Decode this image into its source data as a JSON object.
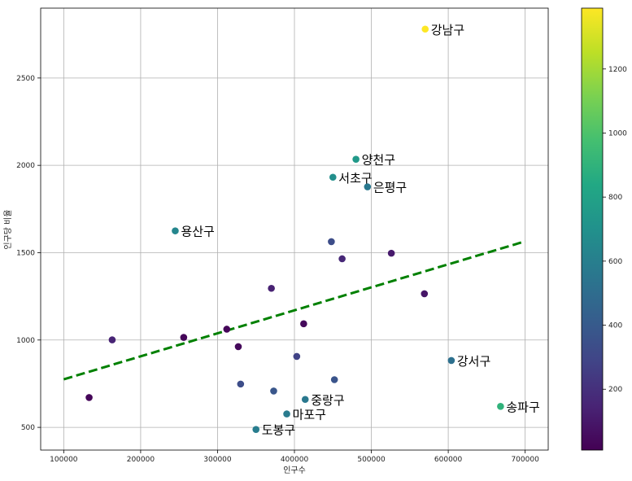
{
  "chart_data": {
    "type": "scatter",
    "xlabel": "인구수",
    "ylabel": "인구당 비율",
    "xlim": [
      70000,
      730000
    ],
    "ylim": [
      370,
      2900
    ],
    "xticks": [
      100000,
      200000,
      300000,
      400000,
      500000,
      600000,
      700000
    ],
    "yticks": [
      500,
      1000,
      1500,
      2000,
      2500
    ],
    "grid": true,
    "colormap": "viridis",
    "colorbar": {
      "min": 10,
      "max": 1390,
      "ticks": [
        200,
        400,
        600,
        800,
        1000,
        1200
      ]
    },
    "trend_line": {
      "x": [
        100000,
        700000
      ],
      "y": [
        775,
        1565
      ],
      "color": "#008000",
      "style": "dashed"
    },
    "points": [
      {
        "x": 570000,
        "y": 2780,
        "c": 1390,
        "label": "강남구"
      },
      {
        "x": 480000,
        "y": 2035,
        "c": 750,
        "label": "양천구"
      },
      {
        "x": 450000,
        "y": 1932,
        "c": 690,
        "label": "서초구"
      },
      {
        "x": 495000,
        "y": 1877,
        "c": 560,
        "label": "은평구"
      },
      {
        "x": 245000,
        "y": 1625,
        "c": 640,
        "label": "용산구"
      },
      {
        "x": 604000,
        "y": 883,
        "c": 520,
        "label": "강서구"
      },
      {
        "x": 668000,
        "y": 620,
        "c": 900,
        "label": "송파구"
      },
      {
        "x": 414000,
        "y": 660,
        "c": 560,
        "label": "중랑구"
      },
      {
        "x": 390000,
        "y": 577,
        "c": 580,
        "label": "마포구"
      },
      {
        "x": 350000,
        "y": 488,
        "c": 590,
        "label": "도봉구"
      },
      {
        "x": 448000,
        "y": 1563,
        "c": 330,
        "label": ""
      },
      {
        "x": 462000,
        "y": 1465,
        "c": 160,
        "label": ""
      },
      {
        "x": 526000,
        "y": 1497,
        "c": 110,
        "label": ""
      },
      {
        "x": 370000,
        "y": 1296,
        "c": 140,
        "label": ""
      },
      {
        "x": 569000,
        "y": 1265,
        "c": 90,
        "label": ""
      },
      {
        "x": 412000,
        "y": 1093,
        "c": 40,
        "label": ""
      },
      {
        "x": 312000,
        "y": 1062,
        "c": 30,
        "label": ""
      },
      {
        "x": 256000,
        "y": 1015,
        "c": 30,
        "label": ""
      },
      {
        "x": 163000,
        "y": 1001,
        "c": 150,
        "label": ""
      },
      {
        "x": 327000,
        "y": 962,
        "c": 40,
        "label": ""
      },
      {
        "x": 403000,
        "y": 906,
        "c": 280,
        "label": ""
      },
      {
        "x": 452000,
        "y": 773,
        "c": 370,
        "label": ""
      },
      {
        "x": 330000,
        "y": 748,
        "c": 330,
        "label": ""
      },
      {
        "x": 373000,
        "y": 708,
        "c": 380,
        "label": ""
      },
      {
        "x": 133000,
        "y": 671,
        "c": 30,
        "label": ""
      }
    ]
  }
}
